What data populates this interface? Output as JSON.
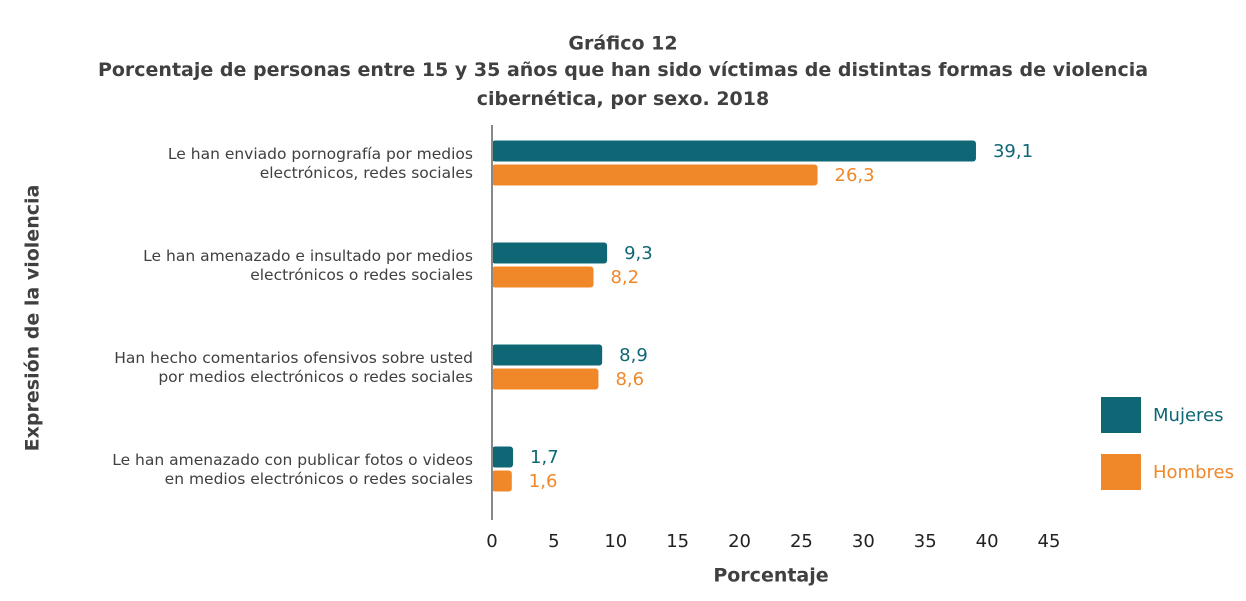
{
  "chart_data": {
    "type": "barh",
    "title": "Gráfico 12",
    "subtitle": "Porcentaje de personas entre 15 y 35 años que han sido víctimas de distintas formas de violencia\ncibernética, por sexo. 2018",
    "xlabel": "Porcentaje",
    "ylabel": "Expresión de la violencia",
    "categories": [
      "Le han enviado pornografía por medios\nelectrónicos, redes sociales",
      "Le han amenazado e insultado por medios\nelectrónicos o redes sociales",
      "Han hecho comentarios ofensivos sobre usted\npor medios electrónicos o redes sociales",
      "Le han amenazado con publicar fotos o videos\nen medios electrónicos o redes sociales"
    ],
    "series": [
      {
        "name": "Mujeres",
        "color": "#0f6775",
        "values": [
          39.1,
          9.3,
          8.9,
          1.7
        ],
        "value_labels": [
          "39,1",
          "9,3",
          "8,9",
          "1,7"
        ]
      },
      {
        "name": "Hombres",
        "color": "#f0882a",
        "values": [
          26.3,
          8.2,
          8.6,
          1.6
        ],
        "value_labels": [
          "26,3",
          "8,2",
          "8,6",
          "1,6"
        ]
      }
    ],
    "xlim": [
      0,
      45
    ],
    "xticks": [
      0,
      5,
      10,
      15,
      20,
      25,
      30,
      35,
      40,
      45
    ],
    "legend": "right"
  }
}
